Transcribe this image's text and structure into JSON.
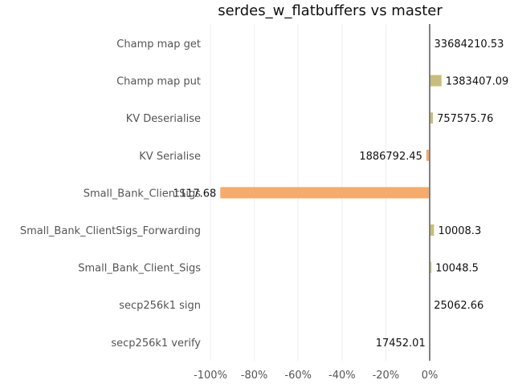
{
  "chart_data": {
    "type": "bar",
    "orientation": "horizontal",
    "title": "serdes_w_flatbuffers vs master",
    "xlabel": "",
    "ylabel": "",
    "xlim": [
      -100,
      0
    ],
    "x_ticks": [
      "-100%",
      "-80%",
      "-60%",
      "-40%",
      "-20%",
      "0%"
    ],
    "x_tick_values": [
      -100,
      -80,
      -60,
      -40,
      -20,
      0
    ],
    "grid": "vertical",
    "categories": [
      "Champ map get",
      "Champ map put",
      "KV Deserialise",
      "KV Serialise",
      "Small_Bank_ClientSigs",
      "Small_Bank_ClientSigs_Forwarding",
      "Small_Bank_Client_Sigs",
      "secp256k1 sign",
      "secp256k1 verify"
    ],
    "category_labels_printed": [
      "Champ map get",
      "Champ map put",
      "KV Deserialise",
      "KV Serialise",
      "Small_Bank_ClientSigs",
      "Small_Bank_ClientSigs_Forwarding",
      "Small_Bank_Client_Sigs",
      "secp256k1 sign",
      "secp256k1 verify"
    ],
    "values_percent": [
      0.2,
      5.4,
      1.5,
      -1.5,
      -95.5,
      2.0,
      0.8,
      0.1,
      -0.1
    ],
    "value_labels": [
      "33684210.53",
      "1383407.09",
      "757575.76",
      "1886792.45",
      "1117.68",
      "10008.3",
      "10048.5",
      "25062.66",
      "17452.01"
    ],
    "colors": {
      "positive": "#c8bd7c",
      "negative": "#f5ab6c",
      "zero_line": "#808080",
      "grid": "#ececec",
      "tick_text": "#555555",
      "title_text": "#111111",
      "label_text": "#111111"
    }
  }
}
